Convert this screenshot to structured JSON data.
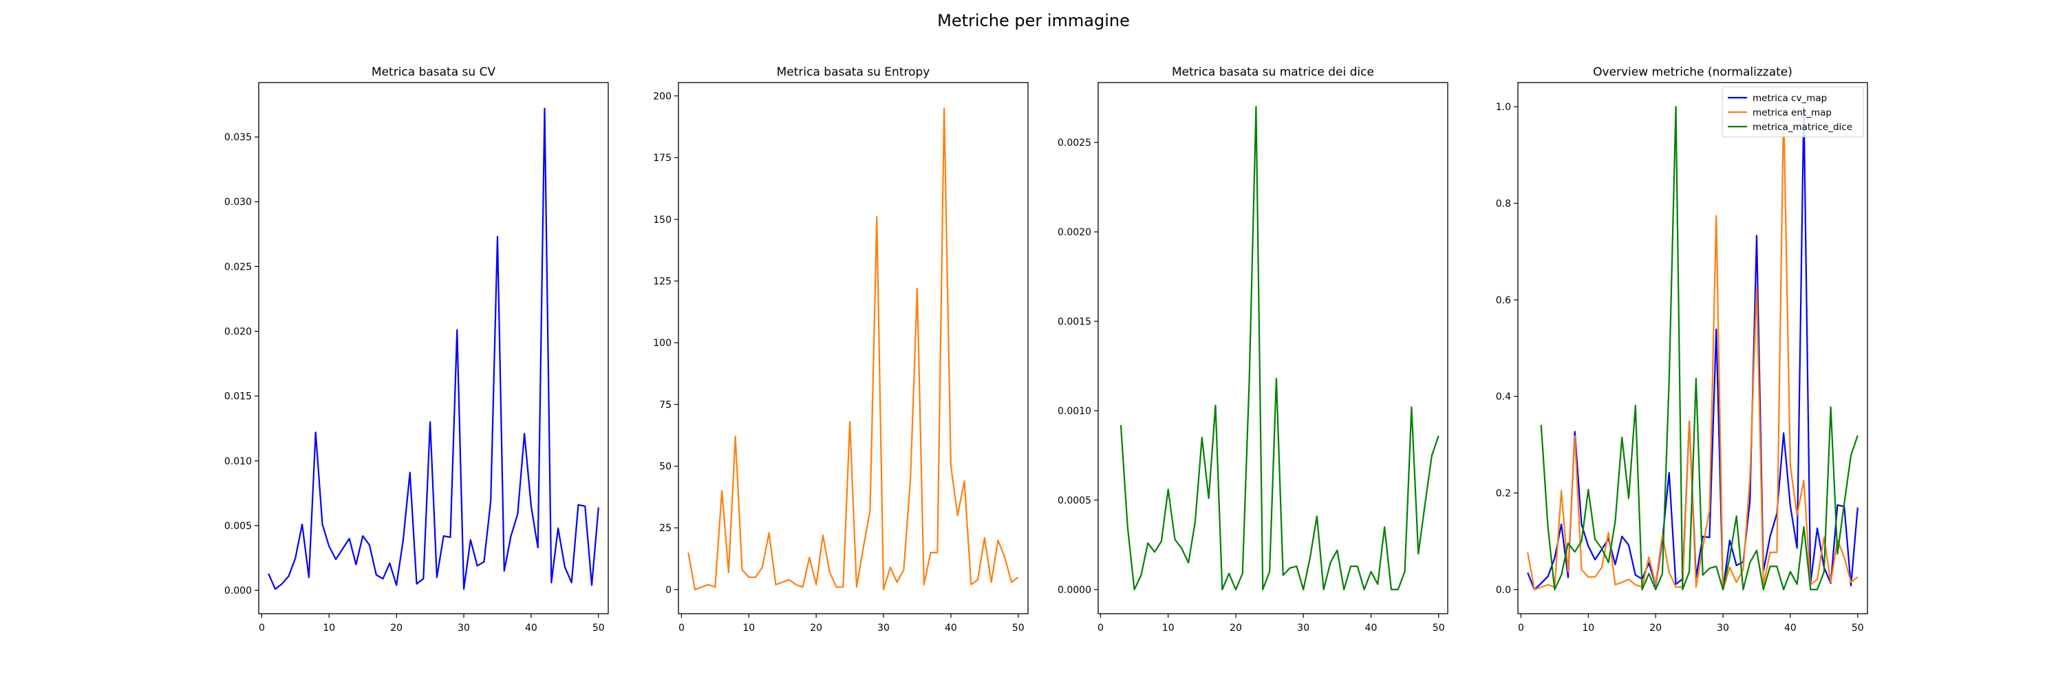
{
  "figure": {
    "title": "Metriche per immagine"
  },
  "chart_data": [
    {
      "type": "line",
      "title": "Metrica basata su CV",
      "xlim": [
        -0.45,
        51.45
      ],
      "ylim": [
        -0.0018,
        0.0392
      ],
      "xticks": [
        0,
        10,
        20,
        30,
        40,
        50
      ],
      "yticks": [
        0.0,
        0.005,
        0.01,
        0.015,
        0.02,
        0.025,
        0.03,
        0.035
      ],
      "ytick_labels": [
        "0.000",
        "0.005",
        "0.010",
        "0.015",
        "0.020",
        "0.025",
        "0.030",
        "0.035"
      ],
      "series": [
        {
          "color": "#0000ff",
          "x": [
            1,
            2,
            3,
            4,
            5,
            6,
            7,
            8,
            9,
            10,
            11,
            12,
            13,
            14,
            15,
            16,
            17,
            18,
            19,
            20,
            21,
            22,
            23,
            24,
            25,
            26,
            27,
            28,
            29,
            30,
            31,
            32,
            33,
            34,
            35,
            36,
            37,
            38,
            39,
            40,
            41,
            42,
            43,
            44,
            45,
            46,
            47,
            48,
            49,
            50
          ],
          "y": [
            0.0013,
            0.0001,
            0.0005,
            0.0011,
            0.0025,
            0.0051,
            0.001,
            0.0122,
            0.0051,
            0.0034,
            0.0024,
            0.0032,
            0.004,
            0.002,
            0.0042,
            0.0035,
            0.0012,
            0.0009,
            0.0021,
            0.0004,
            0.0039,
            0.0091,
            0.0005,
            0.0009,
            0.013,
            0.001,
            0.0042,
            0.0041,
            0.0201,
            0.0001,
            0.0039,
            0.0019,
            0.0022,
            0.0069,
            0.0273,
            0.0015,
            0.0042,
            0.0059,
            0.0121,
            0.0065,
            0.0033,
            0.0372,
            0.0006,
            0.0048,
            0.0018,
            0.0006,
            0.0066,
            0.0065,
            0.0004,
            0.0064
          ]
        }
      ]
    },
    {
      "type": "line",
      "title": "Metrica basata su Entropy",
      "xlim": [
        -0.45,
        51.45
      ],
      "ylim": [
        -9.78,
        205.4
      ],
      "xticks": [
        0,
        10,
        20,
        30,
        40,
        50
      ],
      "yticks": [
        0,
        25,
        50,
        75,
        100,
        125,
        150,
        175,
        200
      ],
      "ytick_labels": [
        "0",
        "25",
        "50",
        "75",
        "100",
        "125",
        "150",
        "175",
        "200"
      ],
      "series": [
        {
          "color": "#ff7f0e",
          "x": [
            1,
            2,
            3,
            4,
            5,
            6,
            7,
            8,
            9,
            10,
            11,
            12,
            13,
            14,
            15,
            16,
            17,
            18,
            19,
            20,
            21,
            22,
            23,
            24,
            25,
            26,
            27,
            28,
            29,
            30,
            31,
            32,
            33,
            34,
            35,
            36,
            37,
            38,
            39,
            40,
            41,
            42,
            43,
            44,
            45,
            46,
            47,
            48,
            49,
            50
          ],
          "y": [
            15,
            0,
            1,
            2,
            1,
            40,
            7,
            62,
            8,
            5,
            5,
            9,
            23,
            2,
            3,
            4,
            2,
            1,
            13,
            2,
            22,
            7,
            1,
            1,
            68,
            1,
            17,
            32,
            151,
            0,
            9,
            3,
            8,
            45,
            122,
            2,
            15,
            15,
            195,
            50,
            30,
            44,
            2,
            4,
            21,
            3,
            20,
            13,
            3,
            5
          ]
        }
      ]
    },
    {
      "type": "line",
      "title": "Metrica basata su matrice dei dice",
      "xlim": [
        -0.35,
        51.35
      ],
      "ylim": [
        -0.000135,
        0.002835
      ],
      "xticks": [
        0,
        10,
        20,
        30,
        40,
        50
      ],
      "yticks": [
        0.0,
        0.0005,
        0.001,
        0.0015,
        0.002,
        0.0025
      ],
      "ytick_labels": [
        "0.0000",
        "0.0005",
        "0.0010",
        "0.0015",
        "0.0020",
        "0.0025"
      ],
      "series": [
        {
          "color": "#008000",
          "x": [
            3,
            4,
            5,
            6,
            7,
            8,
            9,
            10,
            11,
            12,
            13,
            14,
            15,
            16,
            17,
            18,
            19,
            20,
            21,
            22,
            23,
            24,
            25,
            26,
            27,
            28,
            29,
            30,
            31,
            32,
            33,
            34,
            35,
            36,
            37,
            38,
            39,
            40,
            41,
            42,
            43,
            44,
            45,
            46,
            47,
            48,
            49,
            50
          ],
          "y": [
            0.00092,
            0.00035,
            0.0,
            8e-05,
            0.00026,
            0.00021,
            0.00027,
            0.00056,
            0.00028,
            0.00023,
            0.00015,
            0.00038,
            0.00085,
            0.00051,
            0.00103,
            0.0,
            9e-05,
            0.0,
            9e-05,
            0.00117,
            0.0027,
            0.0,
            0.0001,
            0.00118,
            8e-05,
            0.00012,
            0.00013,
            0.0,
            0.00018,
            0.00041,
            0.0,
            0.00015,
            0.00022,
            0.0,
            0.00013,
            0.00013,
            0.0,
            0.0001,
            3e-05,
            0.00035,
            0.0,
            0.0,
            0.0001,
            0.00102,
            0.0002,
            0.00048,
            0.00075,
            0.00086
          ]
        }
      ]
    },
    {
      "type": "line",
      "title": "Overview metriche (normalizzate)",
      "xlim": [
        -0.45,
        51.45
      ],
      "ylim": [
        -0.05,
        1.05
      ],
      "xticks": [
        0,
        10,
        20,
        30,
        40,
        50
      ],
      "yticks": [
        0.0,
        0.2,
        0.4,
        0.6,
        0.8,
        1.0
      ],
      "ytick_labels": [
        "0.0",
        "0.2",
        "0.4",
        "0.6",
        "0.8",
        "1.0"
      ],
      "legend_position": "upper right",
      "series": [
        {
          "name": "metrica cv_map",
          "color": "#0000ff",
          "x": [
            1,
            2,
            3,
            4,
            5,
            6,
            7,
            8,
            9,
            10,
            11,
            12,
            13,
            14,
            15,
            16,
            17,
            18,
            19,
            20,
            21,
            22,
            23,
            24,
            25,
            26,
            27,
            28,
            29,
            30,
            31,
            32,
            33,
            34,
            35,
            36,
            37,
            38,
            39,
            40,
            41,
            42,
            43,
            44,
            45,
            46,
            47,
            48,
            49,
            50
          ],
          "y": [
            0.035,
            0.0,
            0.013,
            0.027,
            0.065,
            0.135,
            0.025,
            0.327,
            0.135,
            0.09,
            0.062,
            0.083,
            0.105,
            0.052,
            0.11,
            0.092,
            0.03,
            0.022,
            0.055,
            0.008,
            0.102,
            0.242,
            0.011,
            0.022,
            0.348,
            0.025,
            0.11,
            0.108,
            0.539,
            0.0,
            0.102,
            0.05,
            0.057,
            0.183,
            0.733,
            0.038,
            0.11,
            0.157,
            0.324,
            0.173,
            0.086,
            1.0,
            0.013,
            0.127,
            0.046,
            0.013,
            0.175,
            0.172,
            0.008,
            0.17
          ]
        },
        {
          "name": "metrica ent_map",
          "color": "#ff7f0e",
          "x": [
            1,
            2,
            3,
            4,
            5,
            6,
            7,
            8,
            9,
            10,
            11,
            12,
            13,
            14,
            15,
            16,
            17,
            18,
            19,
            20,
            21,
            22,
            23,
            24,
            25,
            26,
            27,
            28,
            29,
            30,
            31,
            32,
            33,
            34,
            35,
            36,
            37,
            38,
            39,
            40,
            41,
            42,
            43,
            44,
            45,
            46,
            47,
            48,
            49,
            50
          ],
          "y": [
            0.077,
            0.0,
            0.005,
            0.01,
            0.005,
            0.205,
            0.036,
            0.318,
            0.041,
            0.026,
            0.026,
            0.046,
            0.118,
            0.01,
            0.015,
            0.021,
            0.01,
            0.005,
            0.067,
            0.01,
            0.113,
            0.036,
            0.005,
            0.005,
            0.349,
            0.005,
            0.087,
            0.164,
            0.774,
            0.0,
            0.046,
            0.015,
            0.041,
            0.231,
            0.626,
            0.01,
            0.077,
            0.077,
            1.0,
            0.256,
            0.154,
            0.226,
            0.01,
            0.021,
            0.108,
            0.015,
            0.103,
            0.067,
            0.015,
            0.026
          ]
        },
        {
          "name": "metrica_matrice_dice",
          "color": "#008000",
          "x": [
            3,
            4,
            5,
            6,
            7,
            8,
            9,
            10,
            11,
            12,
            13,
            14,
            15,
            16,
            17,
            18,
            19,
            20,
            21,
            22,
            23,
            24,
            25,
            26,
            27,
            28,
            29,
            30,
            31,
            32,
            33,
            34,
            35,
            36,
            37,
            38,
            39,
            40,
            41,
            42,
            43,
            44,
            45,
            46,
            47,
            48,
            49,
            50
          ],
          "y": [
            0.341,
            0.13,
            0.0,
            0.03,
            0.096,
            0.078,
            0.1,
            0.207,
            0.104,
            0.085,
            0.056,
            0.141,
            0.315,
            0.189,
            0.381,
            0.0,
            0.033,
            0.0,
            0.033,
            0.433,
            1.0,
            0.0,
            0.037,
            0.437,
            0.03,
            0.044,
            0.048,
            0.0,
            0.067,
            0.152,
            0.0,
            0.056,
            0.081,
            0.0,
            0.048,
            0.048,
            0.0,
            0.037,
            0.011,
            0.13,
            0.0,
            0.0,
            0.037,
            0.378,
            0.074,
            0.178,
            0.278,
            0.319
          ]
        }
      ]
    }
  ]
}
